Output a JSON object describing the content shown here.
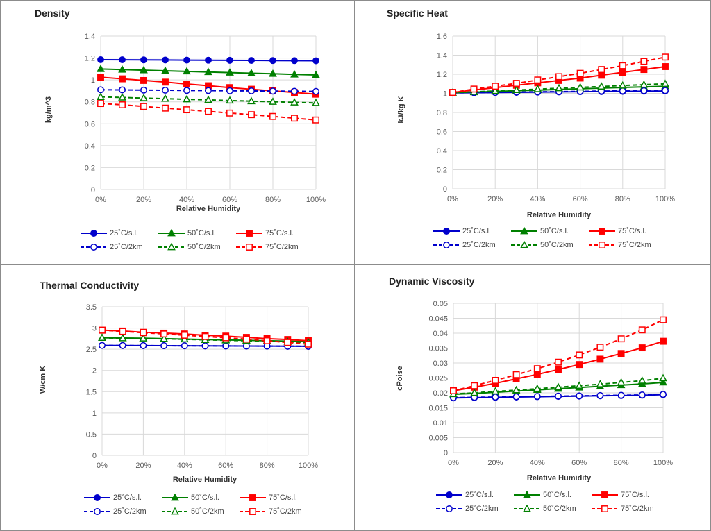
{
  "chart_data": [
    {
      "type": "line",
      "title": "Density",
      "xlabel": "Relative Humidity",
      "ylabel": "kg/m^3",
      "x": [
        0,
        10,
        20,
        30,
        40,
        50,
        60,
        70,
        80,
        90,
        100
      ],
      "xticks": [
        "0%",
        "20%",
        "40%",
        "60%",
        "80%",
        "100%"
      ],
      "xlim": [
        0,
        100
      ],
      "ylim": [
        0,
        1.4
      ],
      "yticks": [
        "0",
        "0.2",
        "0.4",
        "0.6",
        "0.8",
        "1",
        "1.2",
        "1.4"
      ],
      "grid": true,
      "legend": "bottom",
      "series": [
        {
          "name": "25˚C/s.l.",
          "color": "#0000cc",
          "marker": "circle",
          "filled": true,
          "dash": false,
          "values": [
            1.185,
            1.184,
            1.183,
            1.182,
            1.181,
            1.18,
            1.179,
            1.178,
            1.177,
            1.176,
            1.175
          ]
        },
        {
          "name": "50˚C/s.l.",
          "color": "#008000",
          "marker": "triangle",
          "filled": true,
          "dash": false,
          "values": [
            1.1,
            1.094,
            1.089,
            1.083,
            1.078,
            1.072,
            1.067,
            1.061,
            1.056,
            1.05,
            1.045
          ]
        },
        {
          "name": "75˚C/s.l.",
          "color": "#ff0000",
          "marker": "square",
          "filled": true,
          "dash": false,
          "values": [
            1.025,
            1.01,
            0.995,
            0.98,
            0.963,
            0.947,
            0.93,
            0.915,
            0.9,
            0.885,
            0.87
          ]
        },
        {
          "name": "25˚C/2km",
          "color": "#0000cc",
          "marker": "circle",
          "filled": false,
          "dash": true,
          "values": [
            0.91,
            0.909,
            0.907,
            0.906,
            0.904,
            0.903,
            0.901,
            0.9,
            0.898,
            0.897,
            0.895
          ]
        },
        {
          "name": "50˚C/2km",
          "color": "#008000",
          "marker": "triangle",
          "filled": false,
          "dash": true,
          "values": [
            0.845,
            0.84,
            0.834,
            0.829,
            0.823,
            0.818,
            0.812,
            0.806,
            0.801,
            0.795,
            0.79
          ]
        },
        {
          "name": "75˚C/2km",
          "color": "#ff0000",
          "marker": "square",
          "filled": false,
          "dash": true,
          "values": [
            0.785,
            0.773,
            0.758,
            0.743,
            0.728,
            0.713,
            0.698,
            0.683,
            0.667,
            0.651,
            0.635
          ]
        }
      ]
    },
    {
      "type": "line",
      "title": "Specific Heat",
      "xlabel": "Relative Humidity",
      "ylabel": "kJ/kg K",
      "x": [
        0,
        10,
        20,
        30,
        40,
        50,
        60,
        70,
        80,
        90,
        100
      ],
      "xticks": [
        "0%",
        "20%",
        "40%",
        "60%",
        "80%",
        "100%"
      ],
      "xlim": [
        0,
        100
      ],
      "ylim": [
        0,
        1.6
      ],
      "yticks": [
        "0",
        "0.2",
        "0.4",
        "0.6",
        "0.8",
        "1",
        "1.2",
        "1.4",
        "1.6"
      ],
      "grid": true,
      "legend": "bottom",
      "series": [
        {
          "name": "25˚C/s.l.",
          "color": "#0000cc",
          "marker": "circle",
          "filled": true,
          "dash": false,
          "values": [
            1.005,
            1.007,
            1.009,
            1.011,
            1.013,
            1.015,
            1.017,
            1.019,
            1.021,
            1.023,
            1.025
          ]
        },
        {
          "name": "50˚C/s.l.",
          "color": "#008000",
          "marker": "triangle",
          "filled": true,
          "dash": false,
          "values": [
            1.006,
            1.013,
            1.02,
            1.027,
            1.034,
            1.041,
            1.048,
            1.055,
            1.062,
            1.068,
            1.075
          ]
        },
        {
          "name": "75˚C/s.l.",
          "color": "#ff0000",
          "marker": "square",
          "filled": true,
          "dash": false,
          "values": [
            1.01,
            1.035,
            1.06,
            1.085,
            1.11,
            1.135,
            1.16,
            1.19,
            1.22,
            1.25,
            1.28
          ]
        },
        {
          "name": "25˚C/2km",
          "color": "#0000cc",
          "marker": "circle",
          "filled": false,
          "dash": true,
          "values": [
            1.005,
            1.008,
            1.01,
            1.013,
            1.016,
            1.018,
            1.021,
            1.024,
            1.026,
            1.028,
            1.03
          ]
        },
        {
          "name": "50˚C/2km",
          "color": "#008000",
          "marker": "triangle",
          "filled": false,
          "dash": true,
          "values": [
            1.007,
            1.016,
            1.025,
            1.035,
            1.044,
            1.054,
            1.063,
            1.072,
            1.082,
            1.091,
            1.1
          ]
        },
        {
          "name": "75˚C/2km",
          "color": "#ff0000",
          "marker": "square",
          "filled": false,
          "dash": true,
          "values": [
            1.01,
            1.045,
            1.075,
            1.105,
            1.14,
            1.175,
            1.21,
            1.25,
            1.29,
            1.335,
            1.38
          ]
        }
      ]
    },
    {
      "type": "line",
      "title": "Thermal Conductivity",
      "xlabel": "Relative Humidity",
      "ylabel": "W/cm K",
      "x": [
        0,
        10,
        20,
        30,
        40,
        50,
        60,
        70,
        80,
        90,
        100
      ],
      "xticks": [
        "0%",
        "20%",
        "40%",
        "60%",
        "80%",
        "100%"
      ],
      "xlim": [
        0,
        100
      ],
      "ylim": [
        0,
        3.5
      ],
      "yticks": [
        "0",
        "0.5",
        "1",
        "1.5",
        "2",
        "2.5",
        "3",
        "3.5"
      ],
      "grid": true,
      "legend": "bottom",
      "series": [
        {
          "name": "25˚C/s.l.",
          "color": "#0000cc",
          "marker": "circle",
          "filled": true,
          "dash": false,
          "values": [
            2.59,
            2.588,
            2.586,
            2.584,
            2.582,
            2.58,
            2.578,
            2.576,
            2.574,
            2.572,
            2.57
          ]
        },
        {
          "name": "50˚C/s.l.",
          "color": "#008000",
          "marker": "triangle",
          "filled": true,
          "dash": false,
          "values": [
            2.77,
            2.765,
            2.76,
            2.75,
            2.74,
            2.73,
            2.72,
            2.71,
            2.7,
            2.69,
            2.68
          ]
        },
        {
          "name": "75˚C/s.l.",
          "color": "#ff0000",
          "marker": "square",
          "filled": true,
          "dash": false,
          "values": [
            2.95,
            2.93,
            2.9,
            2.88,
            2.86,
            2.83,
            2.81,
            2.78,
            2.75,
            2.73,
            2.7
          ]
        },
        {
          "name": "25˚C/2km",
          "color": "#0000cc",
          "marker": "circle",
          "filled": false,
          "dash": true,
          "values": [
            2.59,
            2.588,
            2.586,
            2.584,
            2.582,
            2.58,
            2.578,
            2.576,
            2.574,
            2.572,
            2.57
          ]
        },
        {
          "name": "50˚C/2km",
          "color": "#008000",
          "marker": "triangle",
          "filled": false,
          "dash": true,
          "values": [
            2.77,
            2.76,
            2.755,
            2.745,
            2.735,
            2.72,
            2.71,
            2.7,
            2.69,
            2.675,
            2.66
          ]
        },
        {
          "name": "75˚C/2km",
          "color": "#ff0000",
          "marker": "square",
          "filled": false,
          "dash": true,
          "values": [
            2.95,
            2.92,
            2.89,
            2.86,
            2.83,
            2.8,
            2.77,
            2.74,
            2.7,
            2.66,
            2.62
          ]
        }
      ]
    },
    {
      "type": "line",
      "title": "Dynamic Viscosity",
      "xlabel": "Relative Humidity",
      "ylabel": "cPoise",
      "x": [
        0,
        10,
        20,
        30,
        40,
        50,
        60,
        70,
        80,
        90,
        100
      ],
      "xticks": [
        "0%",
        "20%",
        "40%",
        "60%",
        "80%",
        "100%"
      ],
      "xlim": [
        0,
        100
      ],
      "ylim": [
        0,
        0.05
      ],
      "yticks": [
        "0",
        "0.005",
        "0.01",
        "0.015",
        "0.02",
        "0.025",
        "0.03",
        "0.035",
        "0.04",
        "0.045",
        "0.05"
      ],
      "grid": true,
      "legend": "bottom",
      "series": [
        {
          "name": "25˚C/s.l.",
          "color": "#0000cc",
          "marker": "circle",
          "filled": true,
          "dash": false,
          "values": [
            0.0183,
            0.0184,
            0.0185,
            0.0186,
            0.0187,
            0.0188,
            0.0189,
            0.019,
            0.0191,
            0.0192,
            0.0194
          ]
        },
        {
          "name": "50˚C/s.l.",
          "color": "#008000",
          "marker": "triangle",
          "filled": true,
          "dash": false,
          "values": [
            0.0195,
            0.0198,
            0.0202,
            0.0206,
            0.021,
            0.0214,
            0.0218,
            0.0222,
            0.0226,
            0.023,
            0.0235
          ]
        },
        {
          "name": "75˚C/s.l.",
          "color": "#ff0000",
          "marker": "square",
          "filled": true,
          "dash": false,
          "values": [
            0.0207,
            0.0219,
            0.0232,
            0.0247,
            0.0262,
            0.0278,
            0.0295,
            0.0313,
            0.0332,
            0.0351,
            0.0373
          ]
        },
        {
          "name": "25˚C/2km",
          "color": "#0000cc",
          "marker": "circle",
          "filled": false,
          "dash": true,
          "values": [
            0.0184,
            0.0185,
            0.0186,
            0.0187,
            0.0188,
            0.0189,
            0.019,
            0.0191,
            0.0192,
            0.0193,
            0.0195
          ]
        },
        {
          "name": "50˚C/2km",
          "color": "#008000",
          "marker": "triangle",
          "filled": false,
          "dash": true,
          "values": [
            0.0196,
            0.02,
            0.0205,
            0.0209,
            0.0214,
            0.0219,
            0.0224,
            0.0229,
            0.0235,
            0.0241,
            0.0249
          ]
        },
        {
          "name": "75˚C/2km",
          "color": "#ff0000",
          "marker": "square",
          "filled": false,
          "dash": true,
          "values": [
            0.0207,
            0.0224,
            0.0242,
            0.0261,
            0.0281,
            0.0303,
            0.0327,
            0.0353,
            0.0381,
            0.0411,
            0.0445
          ]
        }
      ]
    }
  ]
}
